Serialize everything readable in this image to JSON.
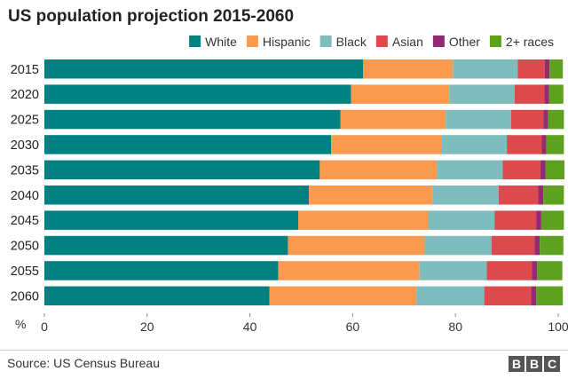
{
  "colors": {
    "White": "#008080",
    "Hispanic": "#fa9a4e",
    "Black": "#7ebcbd",
    "Asian": "#dd4a4e",
    "Other": "#922b72",
    "2+ races": "#5ea01f"
  },
  "footer": {
    "source": "Source: US Census Bureau",
    "logo": "BBC"
  },
  "chart_data": {
    "type": "bar",
    "orientation": "horizontal",
    "stacked": true,
    "title": "US population projection 2015-2060",
    "xlabel": "%",
    "ylabel": "",
    "xlim": [
      0,
      100
    ],
    "xticks": [
      0,
      20,
      40,
      60,
      80,
      100
    ],
    "legend": "top-right",
    "grid": false,
    "categories": [
      "2015",
      "2020",
      "2025",
      "2030",
      "2035",
      "2040",
      "2045",
      "2050",
      "2055",
      "2060"
    ],
    "series": [
      {
        "name": "White",
        "values": [
          62.0,
          59.7,
          57.6,
          55.8,
          53.6,
          51.5,
          49.4,
          47.4,
          45.5,
          43.8
        ]
      },
      {
        "name": "Hispanic",
        "values": [
          17.5,
          19.1,
          20.5,
          21.4,
          22.8,
          24.0,
          25.3,
          26.6,
          27.5,
          28.6
        ]
      },
      {
        "name": "Black",
        "values": [
          12.6,
          12.7,
          12.7,
          12.8,
          12.8,
          12.9,
          12.9,
          13.0,
          13.1,
          13.2
        ]
      },
      {
        "name": "Asian",
        "values": [
          5.3,
          5.8,
          6.3,
          6.8,
          7.3,
          7.7,
          8.1,
          8.4,
          8.8,
          9.1
        ]
      },
      {
        "name": "Other",
        "values": [
          0.9,
          0.9,
          0.9,
          0.9,
          1.0,
          1.0,
          1.0,
          1.0,
          1.0,
          1.0
        ]
      },
      {
        "name": "2+ races",
        "values": [
          2.6,
          2.8,
          3.1,
          3.4,
          3.7,
          4.0,
          4.4,
          4.6,
          4.9,
          5.2
        ]
      }
    ]
  }
}
